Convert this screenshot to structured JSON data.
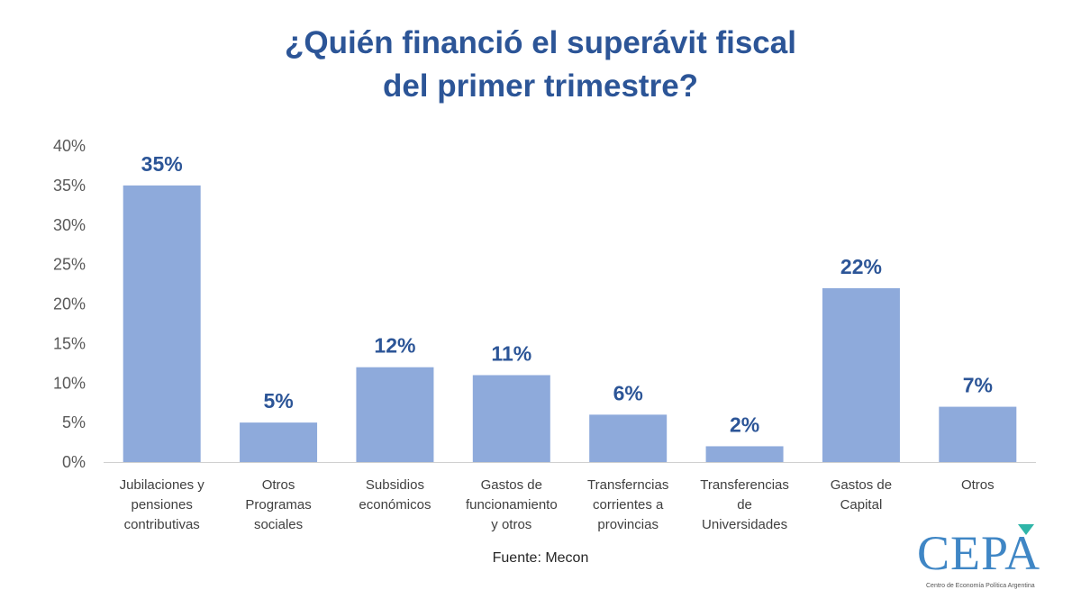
{
  "chart_data": {
    "type": "bar",
    "title_lines": [
      "¿Quién financió el superávit fiscal",
      "del primer trimestre?"
    ],
    "categories": [
      [
        "Jubilaciones y",
        "pensiones",
        "contributivas"
      ],
      [
        "Otros",
        "Programas",
        "sociales"
      ],
      [
        "Subsidios",
        "económicos"
      ],
      [
        "Gastos de",
        "funcionamiento",
        "y otros"
      ],
      [
        "Transferncias",
        "corrientes a",
        "provincias"
      ],
      [
        "Transferencias",
        "de",
        "Universidades"
      ],
      [
        "Gastos de",
        "Capital"
      ],
      [
        "Otros"
      ]
    ],
    "values": [
      35,
      5,
      12,
      11,
      6,
      2,
      22,
      7
    ],
    "data_labels": [
      "35%",
      "5%",
      "12%",
      "11%",
      "6%",
      "2%",
      "22%",
      "7%"
    ],
    "yticks": [
      "0%",
      "5%",
      "10%",
      "15%",
      "20%",
      "25%",
      "30%",
      "35%",
      "40%"
    ],
    "ylim": [
      0,
      40
    ],
    "grid": false,
    "legend": "none",
    "bar_color": "#8eaadb",
    "label_color": "#2c5597",
    "source": "Fuente: Mecon"
  },
  "logo": {
    "text": "CEPA",
    "subtitle": "Centro de Economía Política Argentina",
    "color": "#3f86c5",
    "accent_color": "#2fb5a8"
  }
}
